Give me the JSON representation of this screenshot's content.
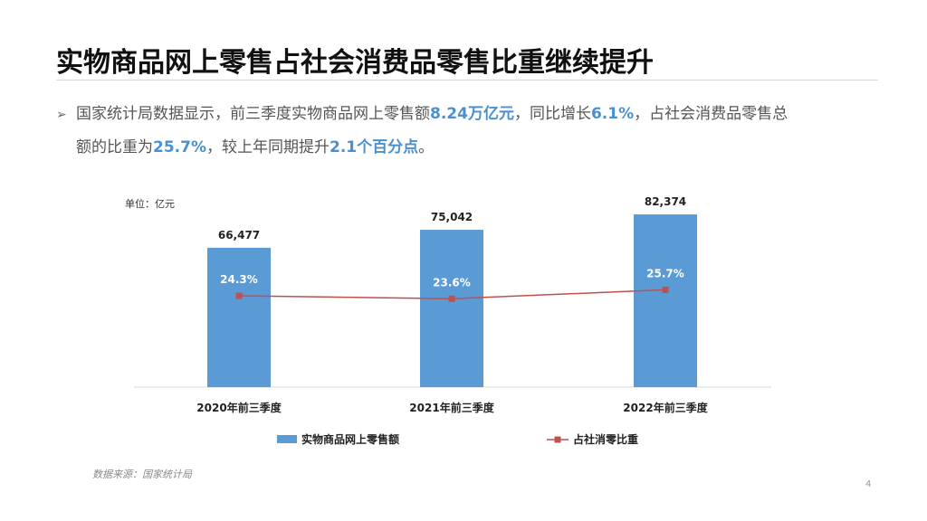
{
  "slide": {
    "title": "实物商品网上零售占社会消费品零售比重继续提升",
    "page_number": "4",
    "source": "数据来源：国家统计局"
  },
  "bullet": {
    "marker": "➢",
    "seg1": "国家统计局数据显示，前三季度实物商品网上零售额",
    "hl1": "8.24万亿元",
    "seg2": "，同比增长",
    "hl2": "6.1%",
    "seg3": "，占社会消费品零售总",
    "seg4": "额的比重为",
    "hl3": "25.7%",
    "seg5": "，较上年同期提升",
    "hl4": "2.1个百分点",
    "seg6": "。"
  },
  "colors": {
    "bar": "#5b9bd5",
    "line": "#c0504d",
    "highlight": "#4a90d0"
  },
  "chart_data": {
    "type": "bar",
    "unit_label": "单位：亿元",
    "categories": [
      "2020年前三季度",
      "2021年前三季度",
      "2022年前三季度"
    ],
    "series": [
      {
        "name": "实物商品网上零售额",
        "type": "bar",
        "values": [
          66477,
          75042,
          82374
        ],
        "labels": [
          "66,477",
          "75,042",
          "82,374"
        ]
      },
      {
        "name": "占社消零比重",
        "type": "line",
        "values": [
          24.3,
          23.6,
          25.7
        ],
        "labels": [
          "24.3%",
          "23.6%",
          "25.7%"
        ]
      }
    ],
    "grid": false,
    "legend_position": "bottom"
  }
}
